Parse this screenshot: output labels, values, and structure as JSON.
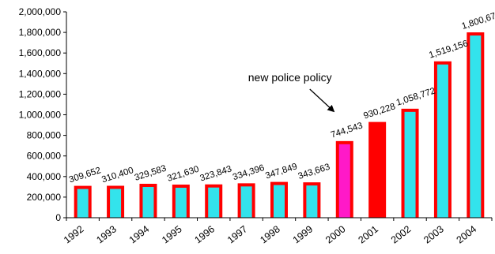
{
  "chart_data": {
    "type": "bar",
    "categories": [
      "1992",
      "1993",
      "1994",
      "1995",
      "1996",
      "1997",
      "1998",
      "1999",
      "2000",
      "2001",
      "2002",
      "2003",
      "2004"
    ],
    "values": [
      309652,
      310400,
      329583,
      321630,
      323843,
      334396,
      347849,
      343663,
      744543,
      930228,
      1058772,
      1519156,
      1800670
    ],
    "data_labels": [
      "309,652",
      "310,400",
      "329,583",
      "321,630",
      "323,843",
      "334,396",
      "347,849",
      "343,663",
      "744,543",
      "930,228",
      "1,058,772",
      "1,519,156",
      "1,800,670"
    ],
    "bar_fill_colors": [
      "#33e3ec",
      "#33e3ec",
      "#33e3ec",
      "#33e3ec",
      "#33e3ec",
      "#33e3ec",
      "#33e3ec",
      "#33e3ec",
      "#ff19c8",
      "#ff0000",
      "#33e3ec",
      "#33e3ec",
      "#33e3ec"
    ],
    "bar_border_color": "#ff0000",
    "ylim": [
      0,
      2000000
    ],
    "y_ticks": [
      0,
      200000,
      400000,
      600000,
      800000,
      1000000,
      1200000,
      1400000,
      1600000,
      1800000,
      2000000
    ],
    "y_tick_labels": [
      "0",
      "200,000",
      "400,000",
      "600,000",
      "800,000",
      "1,000,000",
      "1,200,000",
      "1,400,000",
      "1,600,000",
      "1,800,000",
      "2,000,000"
    ],
    "title": "",
    "xlabel": "",
    "ylabel": "",
    "grid": false,
    "legend": "none",
    "annotations": [
      {
        "text": "new police policy",
        "points_to": "2000"
      }
    ]
  }
}
